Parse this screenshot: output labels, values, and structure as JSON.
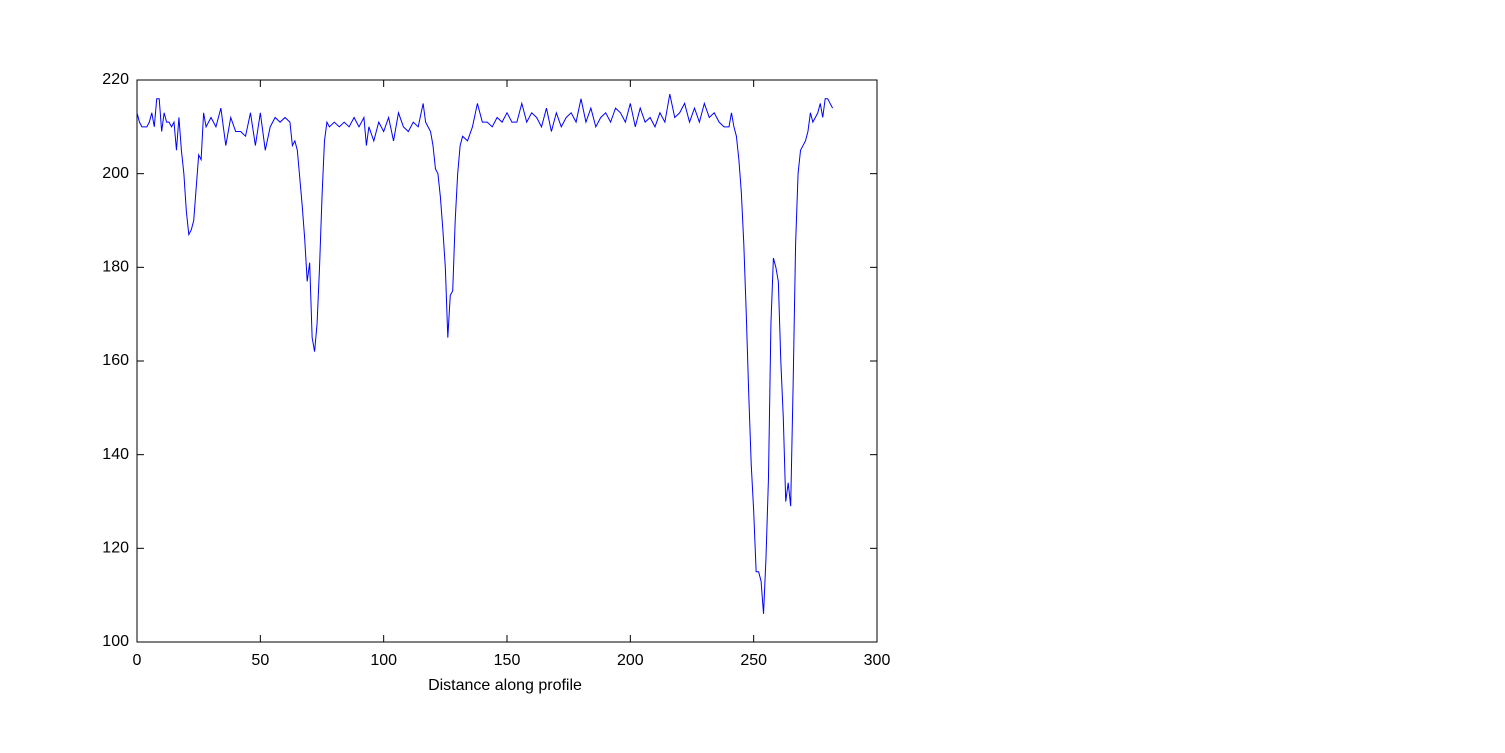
{
  "chart_data": {
    "type": "line",
    "xlabel": "Distance along profile",
    "x": [
      0,
      1,
      2,
      3,
      4,
      5,
      6,
      7,
      8,
      9,
      10,
      11,
      12,
      13,
      14,
      15,
      16,
      17,
      18,
      19,
      20,
      21,
      22,
      23,
      24,
      25,
      26,
      27,
      28,
      30,
      32,
      34,
      36,
      38,
      40,
      42,
      44,
      46,
      48,
      50,
      52,
      54,
      56,
      58,
      60,
      62,
      63,
      64,
      65,
      66,
      67,
      68,
      69,
      70,
      71,
      72,
      73,
      74,
      75,
      76,
      77,
      78,
      80,
      82,
      84,
      86,
      88,
      90,
      92,
      93,
      94,
      96,
      98,
      100,
      102,
      104,
      106,
      108,
      110,
      112,
      114,
      116,
      117,
      118,
      119,
      120,
      121,
      122,
      123,
      124,
      125,
      126,
      127,
      128,
      129,
      130,
      131,
      132,
      134,
      136,
      138,
      140,
      142,
      144,
      146,
      148,
      150,
      152,
      154,
      156,
      158,
      160,
      162,
      164,
      166,
      168,
      170,
      172,
      174,
      176,
      178,
      180,
      182,
      184,
      186,
      188,
      190,
      192,
      194,
      196,
      198,
      200,
      202,
      204,
      206,
      208,
      210,
      212,
      214,
      216,
      218,
      220,
      222,
      224,
      226,
      228,
      230,
      232,
      234,
      236,
      238,
      240,
      241,
      242,
      243,
      244,
      245,
      246,
      247,
      248,
      249,
      250,
      251,
      252,
      253,
      254,
      255,
      256,
      257,
      258,
      259,
      260,
      261,
      262,
      263,
      264,
      265,
      266,
      267,
      268,
      269,
      270,
      271,
      272,
      273,
      274,
      275,
      276,
      277,
      278,
      279,
      280,
      281,
      282
    ],
    "series": [
      {
        "color": "#0000ff",
        "values": [
          213,
          211,
          210,
          210,
          210,
          211,
          213,
          210,
          216,
          216,
          209,
          213,
          211,
          211,
          210,
          211,
          205,
          212,
          205,
          200,
          192,
          187,
          188,
          190,
          197,
          204,
          203,
          213,
          210,
          212,
          210,
          214,
          206,
          212,
          209,
          209,
          208,
          213,
          206,
          213,
          205,
          210,
          212,
          211,
          212,
          211,
          206,
          207,
          205,
          199,
          193,
          186,
          177,
          181,
          165,
          162,
          168,
          180,
          195,
          207,
          211,
          210,
          211,
          210,
          211,
          210,
          212,
          210,
          212,
          206,
          210,
          207,
          211,
          209,
          212,
          207,
          213,
          210,
          209,
          211,
          210,
          215,
          211,
          210,
          209,
          206,
          201,
          200,
          195,
          188,
          180,
          165,
          174,
          175,
          190,
          200,
          206,
          208,
          207,
          210,
          215,
          211,
          211,
          210,
          212,
          211,
          213,
          211,
          211,
          215,
          211,
          213,
          212,
          210,
          214,
          209,
          213,
          210,
          212,
          213,
          211,
          216,
          211,
          214,
          210,
          212,
          213,
          211,
          214,
          213,
          211,
          215,
          210,
          214,
          211,
          212,
          210,
          213,
          211,
          217,
          212,
          213,
          215,
          211,
          214,
          211,
          215,
          212,
          213,
          211,
          210,
          210,
          213,
          210,
          208,
          203,
          196,
          185,
          170,
          153,
          138,
          128,
          115,
          115,
          113,
          106,
          118,
          135,
          168,
          182,
          180,
          177,
          160,
          148,
          130,
          134,
          129,
          155,
          185,
          200,
          205,
          206,
          207,
          209,
          213,
          211,
          212,
          213,
          215,
          212,
          216,
          216,
          215,
          214
        ]
      }
    ],
    "xlim": [
      0,
      300
    ],
    "xticks": [
      0,
      50,
      100,
      150,
      200,
      250,
      300
    ],
    "ylim": [
      100,
      220
    ],
    "yticks": [
      100,
      120,
      140,
      160,
      180,
      200,
      220
    ]
  }
}
